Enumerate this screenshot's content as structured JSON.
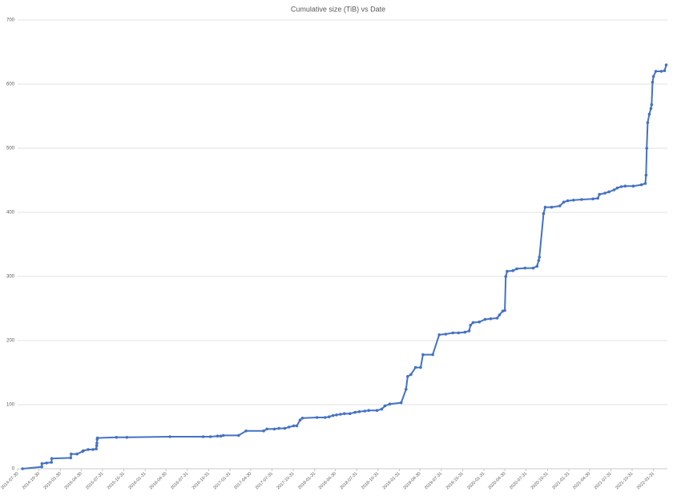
{
  "chart_data": {
    "type": "line",
    "title": "Cumulative size (TiB) vs Date",
    "series": [
      {
        "name": "Cumulative size (TiB)",
        "color": "#4472c4",
        "x": [
          "2014-08-20",
          "2014-11-11",
          "2014-11-12",
          "2014-12-02",
          "2014-12-23",
          "2014-12-24",
          "2015-03-16",
          "2015-03-18",
          "2015-04-12",
          "2015-05-06",
          "2015-05-09",
          "2015-05-30",
          "2015-06-20",
          "2015-07-04",
          "2015-07-06",
          "2015-07-07",
          "2015-07-08",
          "2015-07-09",
          "2015-09-29",
          "2015-11-13",
          "2016-05-17",
          "2016-10-07",
          "2016-11-07",
          "2016-12-08",
          "2016-12-22",
          "2017-01-02",
          "2017-03-09",
          "2017-04-10",
          "2017-06-25",
          "2017-07-09",
          "2017-08-10",
          "2017-08-30",
          "2017-09-24",
          "2017-10-12",
          "2017-11-02",
          "2017-11-15",
          "2017-11-29",
          "2017-12-09",
          "2018-02-10",
          "2018-03-17",
          "2018-04-03",
          "2018-04-20",
          "2018-05-05",
          "2018-05-22",
          "2018-06-08",
          "2018-07-02",
          "2018-07-24",
          "2018-08-11",
          "2018-09-04",
          "2018-09-21",
          "2018-10-27",
          "2018-11-16",
          "2018-11-30",
          "2018-12-21",
          "2019-02-08",
          "2019-03-01",
          "2019-03-08",
          "2019-03-22",
          "2019-04-11",
          "2019-05-03",
          "2019-05-13",
          "2019-06-24",
          "2019-07-22",
          "2019-08-19",
          "2019-09-19",
          "2019-10-13",
          "2019-11-10",
          "2019-11-28",
          "2019-12-04",
          "2019-12-15",
          "2020-01-11",
          "2020-02-05",
          "2020-02-29",
          "2020-03-28",
          "2020-04-07",
          "2020-04-21",
          "2020-04-30",
          "2020-05-04",
          "2020-05-10",
          "2020-06-04",
          "2020-06-21",
          "2020-07-26",
          "2020-08-30",
          "2020-09-16",
          "2020-09-23",
          "2020-09-26",
          "2020-10-14",
          "2020-10-21",
          "2020-11-18",
          "2020-12-23",
          "2021-01-09",
          "2021-01-26",
          "2021-02-20",
          "2021-03-27",
          "2021-05-15",
          "2021-06-05",
          "2021-06-12",
          "2021-07-06",
          "2021-07-23",
          "2021-08-14",
          "2021-08-28",
          "2021-09-14",
          "2021-10-01",
          "2021-11-05",
          "2021-12-10",
          "2021-12-27",
          "2021-12-30",
          "2022-01-02",
          "2022-01-06",
          "2022-01-13",
          "2022-01-20",
          "2022-01-23",
          "2022-01-27",
          "2022-01-31",
          "2022-02-10",
          "2022-03-06",
          "2022-03-20",
          "2022-03-27"
        ],
        "values": [
          0,
          3,
          8,
          9,
          10,
          16,
          17,
          23,
          23,
          27,
          28,
          30,
          30,
          31,
          36,
          40,
          46,
          48,
          49,
          49,
          50,
          50,
          50,
          51,
          51,
          52,
          52,
          59,
          59,
          62,
          62,
          63,
          63,
          65,
          67,
          67,
          76,
          79,
          80,
          80,
          81,
          83,
          84,
          85,
          86,
          86,
          88,
          89,
          90,
          91,
          91,
          93,
          98,
          101,
          103,
          124,
          144,
          147,
          158,
          158,
          178,
          178,
          209,
          210,
          212,
          212,
          213,
          215,
          224,
          228,
          229,
          233,
          234,
          235,
          240,
          246,
          247,
          300,
          308,
          309,
          312,
          313,
          313,
          316,
          325,
          330,
          398,
          408,
          408,
          410,
          416,
          418,
          419,
          420,
          421,
          422,
          428,
          430,
          432,
          435,
          438,
          440,
          441,
          441,
          443,
          445,
          458,
          500,
          540,
          553,
          562,
          568,
          603,
          612,
          620,
          620,
          621,
          630
        ]
      }
    ],
    "xlim": [
      "2014-07-30",
      "2022-04-01"
    ],
    "xticks": [
      "2014-07-30",
      "2014-10-30",
      "2015-01-30",
      "2015-04-30",
      "2015-07-31",
      "2015-10-31",
      "2016-01-31",
      "2016-04-30",
      "2016-07-31",
      "2016-10-31",
      "2017-01-31",
      "2017-04-30",
      "2017-07-31",
      "2017-10-31",
      "2018-01-31",
      "2018-04-30",
      "2018-07-31",
      "2018-10-31",
      "2019-01-31",
      "2019-04-30",
      "2019-07-31",
      "2019-10-31",
      "2020-01-31",
      "2020-04-30",
      "2020-07-31",
      "2020-10-31",
      "2021-01-31",
      "2021-04-30",
      "2021-07-31",
      "2021-10-31",
      "2022-01-31"
    ],
    "ylim": [
      0,
      700
    ],
    "yticks": [
      0,
      100,
      200,
      300,
      400,
      500,
      600,
      700
    ],
    "grid": true
  }
}
